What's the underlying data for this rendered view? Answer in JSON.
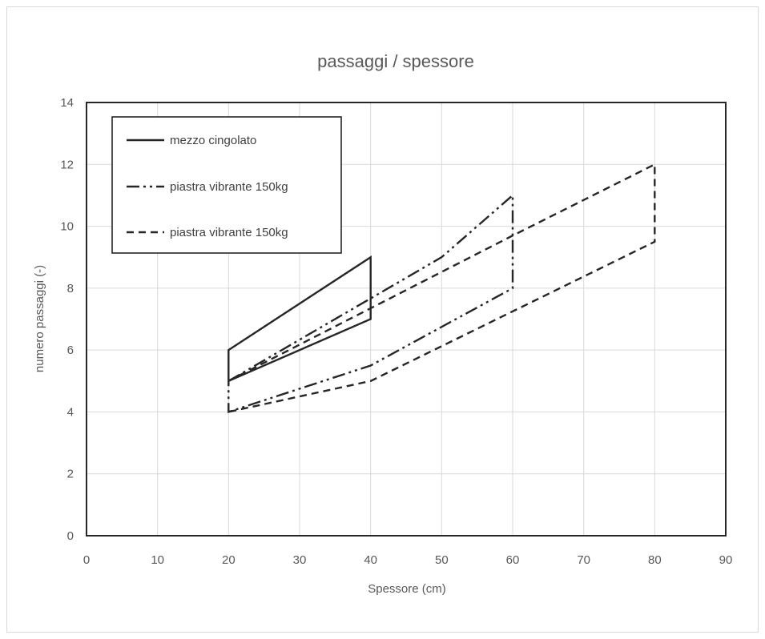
{
  "chart_data": {
    "type": "line",
    "title": "passaggi / spessore",
    "xlabel": "Spessore (cm)",
    "ylabel": "numero passaggi (-)",
    "xlim": [
      0,
      90
    ],
    "ylim": [
      0,
      14
    ],
    "xticks": [
      0,
      10,
      20,
      30,
      40,
      50,
      60,
      70,
      80,
      90
    ],
    "yticks": [
      0,
      2,
      4,
      6,
      8,
      10,
      12,
      14
    ],
    "grid": true,
    "legend_position": "top-left",
    "series": [
      {
        "name": "mezzo cingolato",
        "style": "solid",
        "color": "#262626",
        "x": [
          20,
          40,
          40,
          20,
          20
        ],
        "y": [
          5,
          7,
          9,
          6,
          5
        ]
      },
      {
        "name": "piastra vibrante 150kg",
        "style": "dash-dot-dot",
        "color": "#262626",
        "x": [
          20,
          50,
          60,
          60,
          40,
          20,
          20
        ],
        "y": [
          5,
          9,
          11,
          8,
          5.5,
          4,
          5
        ]
      },
      {
        "name": "piastra vibrante 150kg",
        "style": "dashed",
        "color": "#262626",
        "x": [
          20,
          60,
          80,
          80,
          40,
          20
        ],
        "y": [
          5,
          9.7,
          12,
          9.5,
          5,
          4
        ]
      }
    ]
  }
}
